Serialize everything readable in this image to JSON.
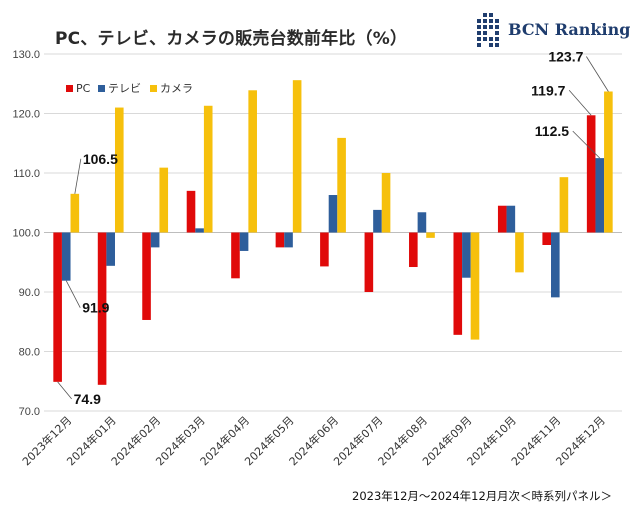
{
  "header": {
    "title": "PC、テレビ、カメラの販売台数前年比（%）"
  },
  "brand": {
    "name": "BCN Ranking",
    "color": "#1f3d6e"
  },
  "footer": {
    "range": "2023年12月～2024年12月",
    "note": "月次＜時系列パネル＞"
  },
  "chart_data": {
    "type": "bar",
    "title": "PC、テレビ、カメラの販売台数前年比（%）",
    "xlabel": "",
    "ylabel": "",
    "ylim": [
      70,
      130
    ],
    "yticks": [
      "70.0",
      "80.0",
      "90.0",
      "100.0",
      "110.0",
      "120.0",
      "130.0"
    ],
    "baseline": 100,
    "grid": true,
    "legend_position": "top-left",
    "categories": [
      "2023年12月",
      "2024年01月",
      "2024年02月",
      "2024年03月",
      "2024年04月",
      "2024年05月",
      "2024年06月",
      "2024年07月",
      "2024年08月",
      "2024年09月",
      "2024年10月",
      "2024年11月",
      "2024年12月"
    ],
    "series": [
      {
        "name": "PC",
        "color": "#e00a0a",
        "values": [
          74.9,
          74.4,
          85.3,
          107.0,
          92.3,
          97.5,
          94.3,
          90.0,
          94.2,
          82.8,
          104.5,
          97.9,
          119.7
        ]
      },
      {
        "name": "テレビ",
        "color": "#2e5e9b",
        "values": [
          91.9,
          94.4,
          97.5,
          100.7,
          96.9,
          97.5,
          106.3,
          103.8,
          103.4,
          92.4,
          104.5,
          89.1,
          112.5
        ]
      },
      {
        "name": "カメラ",
        "color": "#f6c00c",
        "values": [
          106.5,
          121.0,
          110.9,
          121.3,
          123.9,
          125.6,
          115.9,
          110.0,
          99.1,
          82.0,
          93.3,
          109.3,
          123.7
        ]
      }
    ],
    "annotations": [
      {
        "text": "106.5",
        "series": 2,
        "index": 0
      },
      {
        "text": "91.9",
        "series": 1,
        "index": 0
      },
      {
        "text": "74.9",
        "series": 0,
        "index": 0
      },
      {
        "text": "119.7",
        "series": 0,
        "index": 12
      },
      {
        "text": "112.5",
        "series": 1,
        "index": 12
      },
      {
        "text": "123.7",
        "series": 2,
        "index": 12
      }
    ]
  }
}
